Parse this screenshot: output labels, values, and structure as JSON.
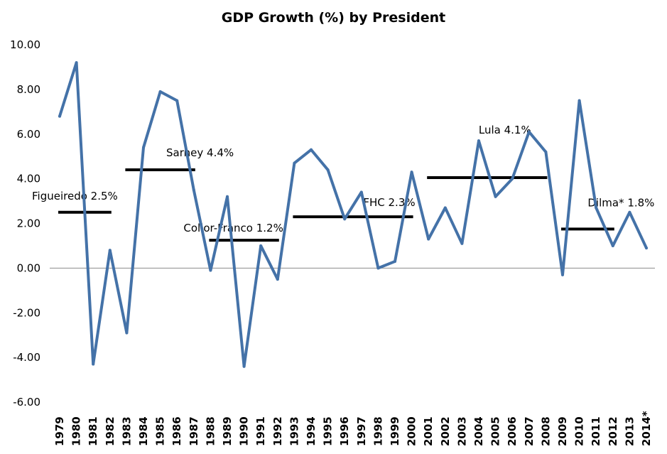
{
  "chart_data": {
    "type": "line",
    "title": "GDP Growth (%) by President",
    "xlabel": "",
    "ylabel": "",
    "ylim": [
      -6,
      10
    ],
    "yticks": [
      "10.00",
      "8.00",
      "6.00",
      "4.00",
      "2.00",
      "0.00",
      "-2.00",
      "-4.00",
      "-6.00"
    ],
    "categories": [
      "1979",
      "1980",
      "1981",
      "1982",
      "1983",
      "1984",
      "1985",
      "1986",
      "1987",
      "1988",
      "1989",
      "1990",
      "1991",
      "1992",
      "1993",
      "1994",
      "1995",
      "1996",
      "1997",
      "1998",
      "1999",
      "2000",
      "2001",
      "2002",
      "2003",
      "2004",
      "2005",
      "2006",
      "2007",
      "2008",
      "2009",
      "2010",
      "2011",
      "2012",
      "2013",
      "2014*"
    ],
    "series": [
      {
        "color": "#4472A8",
        "values": [
          6.8,
          9.2,
          -4.3,
          0.8,
          -2.9,
          5.4,
          7.9,
          7.5,
          3.5,
          -0.1,
          3.2,
          -4.4,
          1.0,
          -0.5,
          4.7,
          5.3,
          4.4,
          2.2,
          3.4,
          0.0,
          0.3,
          4.3,
          1.3,
          2.7,
          1.1,
          5.7,
          3.2,
          4.0,
          6.1,
          5.2,
          -0.3,
          7.5,
          2.7,
          1.0,
          2.5,
          0.9
        ]
      }
    ],
    "grid": false,
    "annotations": [
      {
        "label": "Figueiredo 2.5%",
        "value": 2.5,
        "from": "1979",
        "to": "1982"
      },
      {
        "label": "Sarney 4.4%",
        "value": 4.4,
        "from": "1983",
        "to": "1987"
      },
      {
        "label": "Collor-Franco 1.2%",
        "value": 1.25,
        "from": "1988",
        "to": "1992"
      },
      {
        "label": "FHC 2.3%",
        "value": 2.3,
        "from": "1993",
        "to": "2000"
      },
      {
        "label": "Lula 4.1%",
        "value": 4.05,
        "from": "2001",
        "to": "2008"
      },
      {
        "label": "Dilma* 1.8%",
        "value": 1.75,
        "from": "2009",
        "to": "2012"
      }
    ],
    "annotation_color": "#000000"
  }
}
